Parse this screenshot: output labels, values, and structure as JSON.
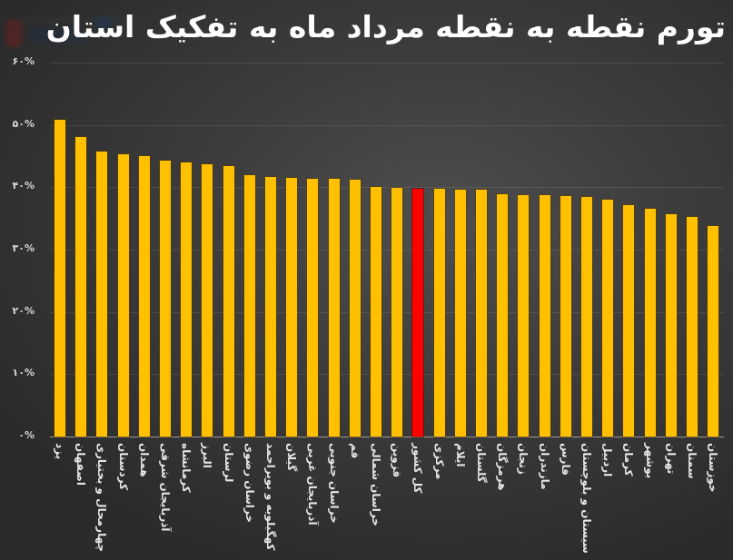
{
  "title": "تورم نقطه به نقطه مرداد ماه به تفکیک استان",
  "colors": {
    "bar": "#FFC000",
    "highlight": "#FF0000",
    "background": "#3d3d3d",
    "text": "#ffffff"
  },
  "y_ticks": [
    "۶۰%",
    "۵۰%",
    "۴۰%",
    "۳۰%",
    "۲۰%",
    "۱۰%",
    "۰%"
  ],
  "chart_data": {
    "type": "bar",
    "title": "تورم نقطه به نقطه مرداد ماه به تفکیک استان",
    "xlabel": "",
    "ylabel": "",
    "ylim": [
      0,
      60
    ],
    "y_tick_labels": [
      "۰%",
      "۱۰%",
      "۲۰%",
      "۳۰%",
      "۴۰%",
      "۵۰%",
      "۶۰%"
    ],
    "grid": true,
    "legend": null,
    "highlight_category": "کل کشور",
    "categories": [
      "یزد",
      "اصفهان",
      "چهارمحال و بختیاری",
      "کردستان",
      "همدان",
      "آذربایجان شرقی",
      "کرمانشاه",
      "البرز",
      "لرستان",
      "خراسان رضوی",
      "کهگیلویه و بویراحمد",
      "گیلان",
      "آذربایجان غربی",
      "خراسان جنوبی",
      "قم",
      "خراسان شمالی",
      "قزوین",
      "کل کشور",
      "مرکزی",
      "ایلام",
      "گلستان",
      "هرمزگان",
      "زنجان",
      "مازندران",
      "فارس",
      "سیستان و بلوچستان",
      "اردبیل",
      "کرمان",
      "بوشهر",
      "تهران",
      "سمنان",
      "خوزستان"
    ],
    "values": [
      50.8,
      48.0,
      45.7,
      45.3,
      45.0,
      44.3,
      44.0,
      43.7,
      43.4,
      41.9,
      41.6,
      41.5,
      41.3,
      41.3,
      41.2,
      40.0,
      39.9,
      39.7,
      39.7,
      39.6,
      39.6,
      38.9,
      38.7,
      38.7,
      38.6,
      38.4,
      38.0,
      37.1,
      36.5,
      35.7,
      35.2,
      33.8
    ]
  }
}
